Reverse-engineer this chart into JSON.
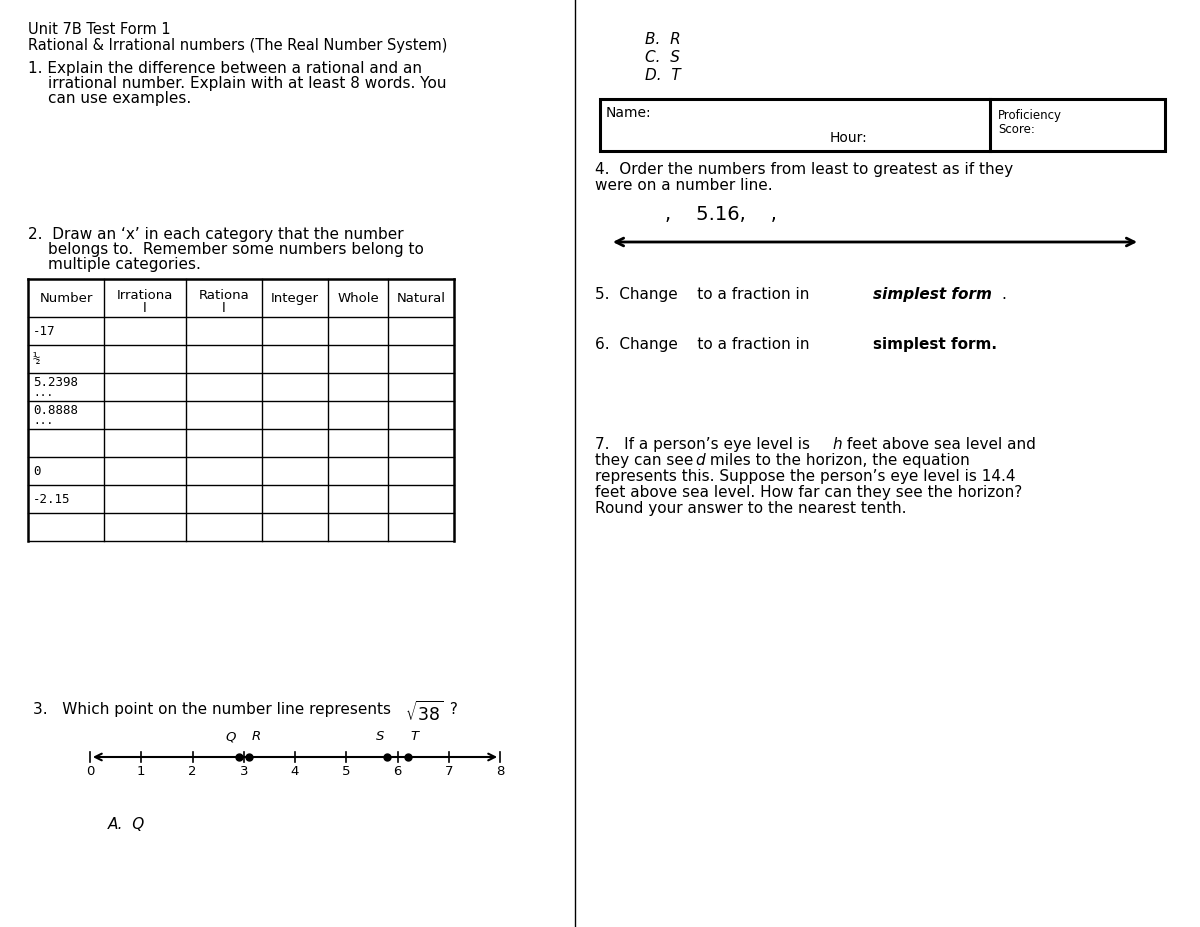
{
  "title_line1": "Unit 7B Test Form 1",
  "title_line2": "Rational & Irrational numbers (The Real Number System)",
  "table_headers_display": [
    "Number",
    "Irrationa\nl",
    "Rationa\nl",
    "Integer",
    "Whole",
    "Natural"
  ],
  "table_row_data": [
    "-17",
    "½",
    "5.2398\n...",
    "0.8888\n...",
    "",
    "0",
    "-2.15",
    ""
  ],
  "number_line_points": {
    "Q": 2.9,
    "R": 3.1,
    "S": 5.8,
    "T": 6.2
  },
  "bg_color": "#ffffff"
}
